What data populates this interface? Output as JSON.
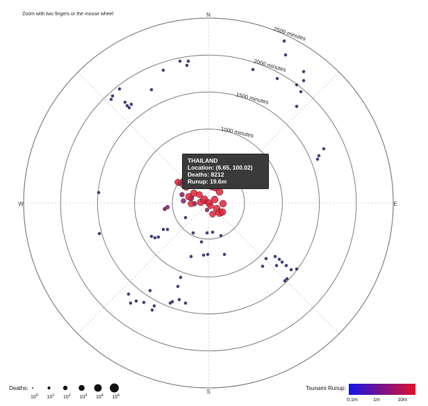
{
  "hint": "Zoom with two fingers or the mouse wheel",
  "compass": {
    "north": "N",
    "south": "S",
    "east": "E",
    "west": "W"
  },
  "rings": [
    {
      "minutes": 1000,
      "label": "1000 minutes"
    },
    {
      "minutes": 1500,
      "label": "1500 minutes"
    },
    {
      "minutes": 2000,
      "label": "2000 minutes"
    },
    {
      "minutes": 2500,
      "label": "2500 minutes"
    }
  ],
  "tooltip": {
    "country": "THAILAND",
    "location": "Location: (6.65, 100.02)",
    "deaths": "Deaths: 8212",
    "runup": "Runup: 19.6m"
  },
  "legend": {
    "deaths_title": "Deaths:",
    "deaths_ticks": [
      {
        "base": "10",
        "exp": "0"
      },
      {
        "base": "10",
        "exp": "1"
      },
      {
        "base": "10",
        "exp": "2"
      },
      {
        "base": "10",
        "exp": "3"
      },
      {
        "base": "10",
        "exp": "4"
      },
      {
        "base": "10",
        "exp": "5"
      }
    ],
    "runup_title": "Tsunami Runup:",
    "runup_ticks": [
      "0.1m",
      "1m",
      "10m"
    ],
    "runup_colors": {
      "low": "#1414e6",
      "high": "#e0102c"
    }
  },
  "colors": {
    "dot_low": "#3b3f87",
    "dot_mid": "#8a2a6a",
    "dot_high": "#e3233a",
    "ring": "#7a7a7a"
  },
  "chart_data": {
    "type": "scatter",
    "coordinate_system": "polar (azimuth degrees clockwise from North, travel time in minutes)",
    "points": [
      {
        "bearing": 0,
        "minutes": 0,
        "deaths": 8212,
        "runup_m": 19.6,
        "label": "THAILAND",
        "location": [
          6.65,
          100.02
        ]
      }
    ],
    "radial_axis": {
      "unit": "minutes",
      "ticks": [
        1000,
        1500,
        2000,
        2500
      ]
    },
    "legend_placement": "bottom"
  }
}
